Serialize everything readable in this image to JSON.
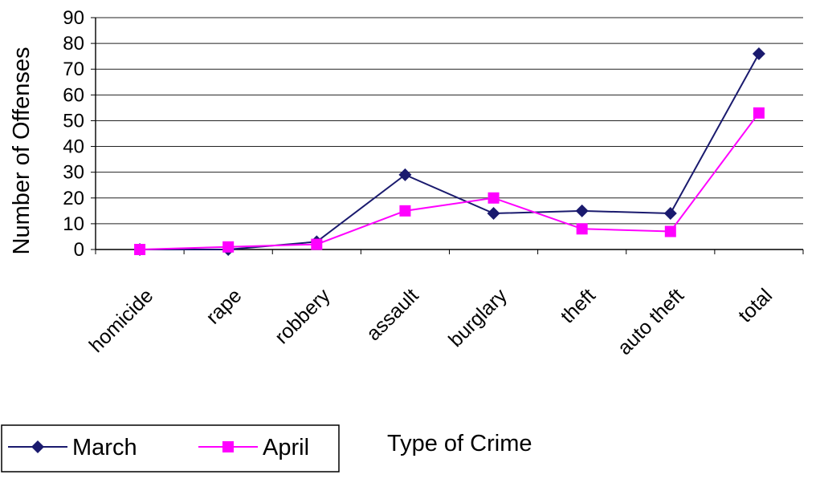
{
  "chart_data": {
    "type": "line",
    "categories": [
      "homicide",
      "rape",
      "robbery",
      "assault",
      "burglary",
      "theft",
      "auto theft",
      "total"
    ],
    "series": [
      {
        "name": "March",
        "values": [
          0,
          0,
          3,
          29,
          14,
          15,
          14,
          76
        ],
        "color": "#1a1a6e",
        "marker": "diamond"
      },
      {
        "name": "April",
        "values": [
          0,
          1,
          2,
          15,
          20,
          8,
          7,
          53
        ],
        "color": "#ff00ff",
        "marker": "square"
      }
    ],
    "title": "",
    "xlabel": "Type of Crime",
    "ylabel": "Number of Offenses",
    "ylim": [
      0,
      90
    ],
    "yticks": [
      0,
      10,
      20,
      30,
      40,
      50,
      60,
      70,
      80,
      90
    ],
    "grid": true,
    "legend_position": "bottom-left"
  }
}
